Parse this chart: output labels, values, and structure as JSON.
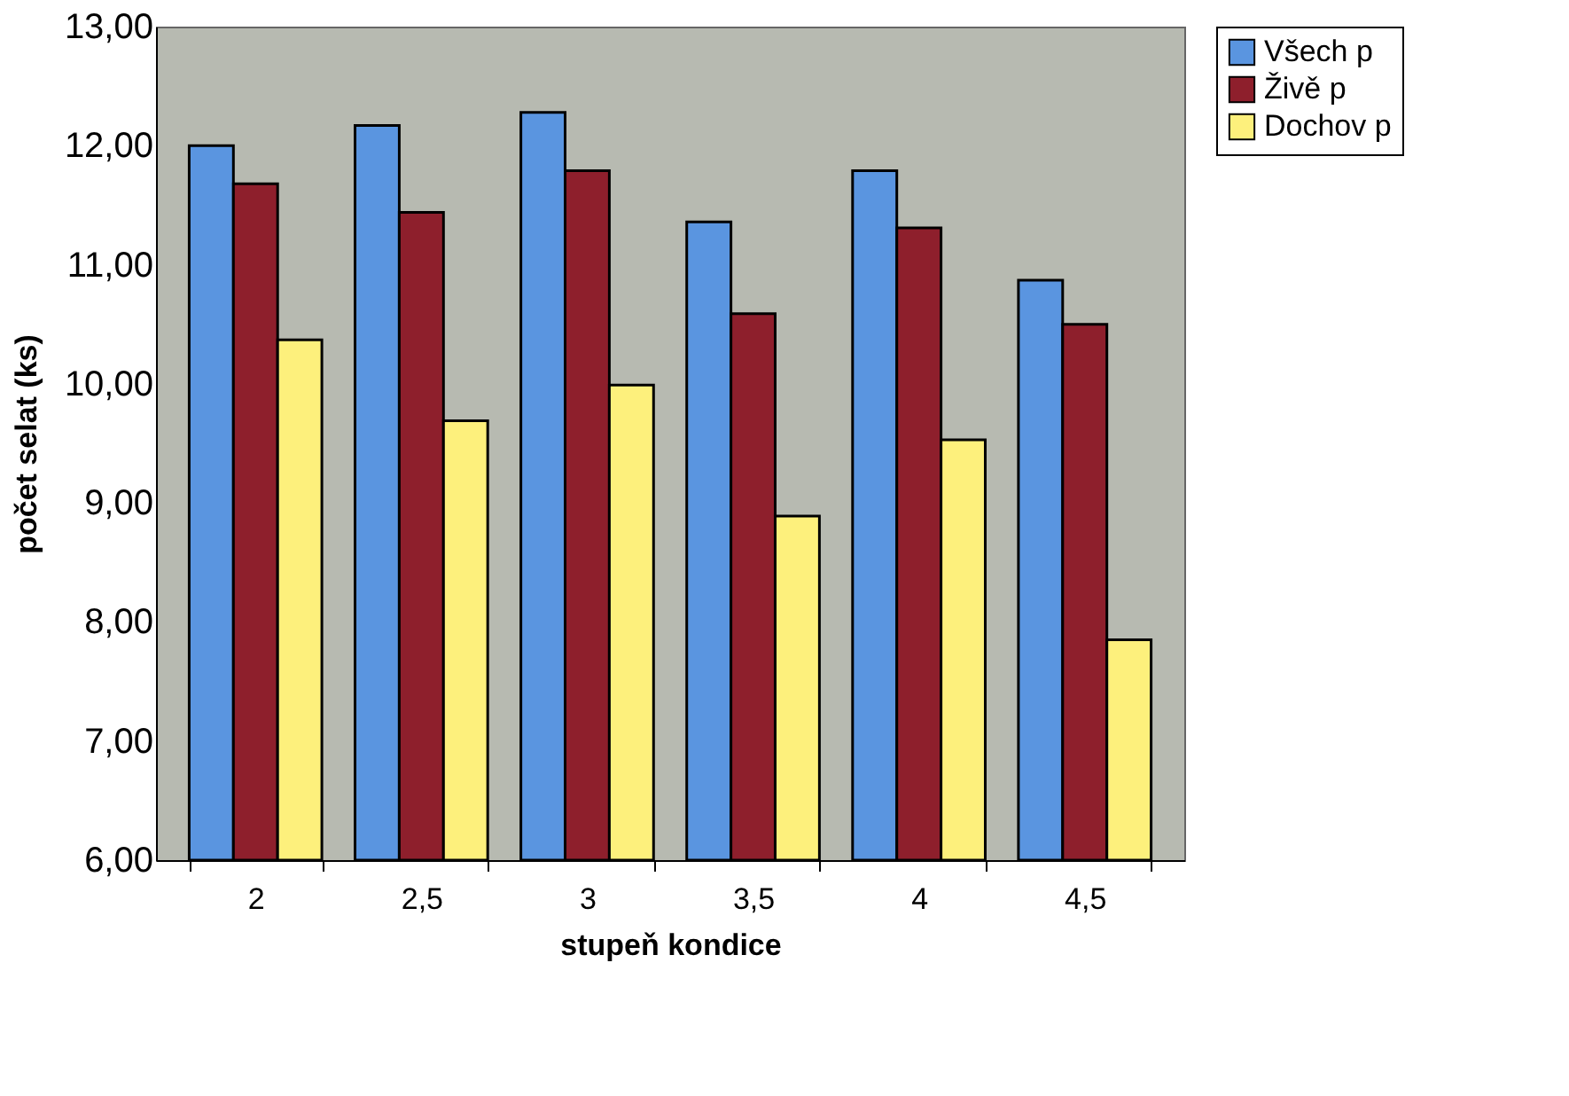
{
  "chart_data": {
    "type": "bar",
    "xlabel": "stupeň kondice",
    "ylabel": "počet selat (ks)",
    "categories": [
      "2",
      "2,5",
      "3",
      "3,5",
      "4",
      "4,5"
    ],
    "series": [
      {
        "name": "Všech p",
        "color": "#5a95e0",
        "values": [
          12.0,
          12.17,
          12.28,
          11.36,
          11.79,
          10.87
        ]
      },
      {
        "name": "Živě p",
        "color": "#8e1f2c",
        "values": [
          11.68,
          11.44,
          11.79,
          10.59,
          11.31,
          10.5
        ]
      },
      {
        "name": "Dochov p",
        "color": "#fdf07c",
        "values": [
          10.37,
          9.69,
          9.99,
          8.89,
          9.53,
          7.85
        ]
      }
    ],
    "ylim": [
      6,
      13
    ],
    "yticks": [
      {
        "value": 6,
        "label": "6,00"
      },
      {
        "value": 7,
        "label": "7,00"
      },
      {
        "value": 8,
        "label": "8,00"
      },
      {
        "value": 9,
        "label": "9,00"
      },
      {
        "value": 10,
        "label": "10,00"
      },
      {
        "value": 11,
        "label": "11,00"
      },
      {
        "value": 12,
        "label": "12,00"
      },
      {
        "value": 13,
        "label": "13,00"
      }
    ],
    "grid": false,
    "legend": "right"
  }
}
